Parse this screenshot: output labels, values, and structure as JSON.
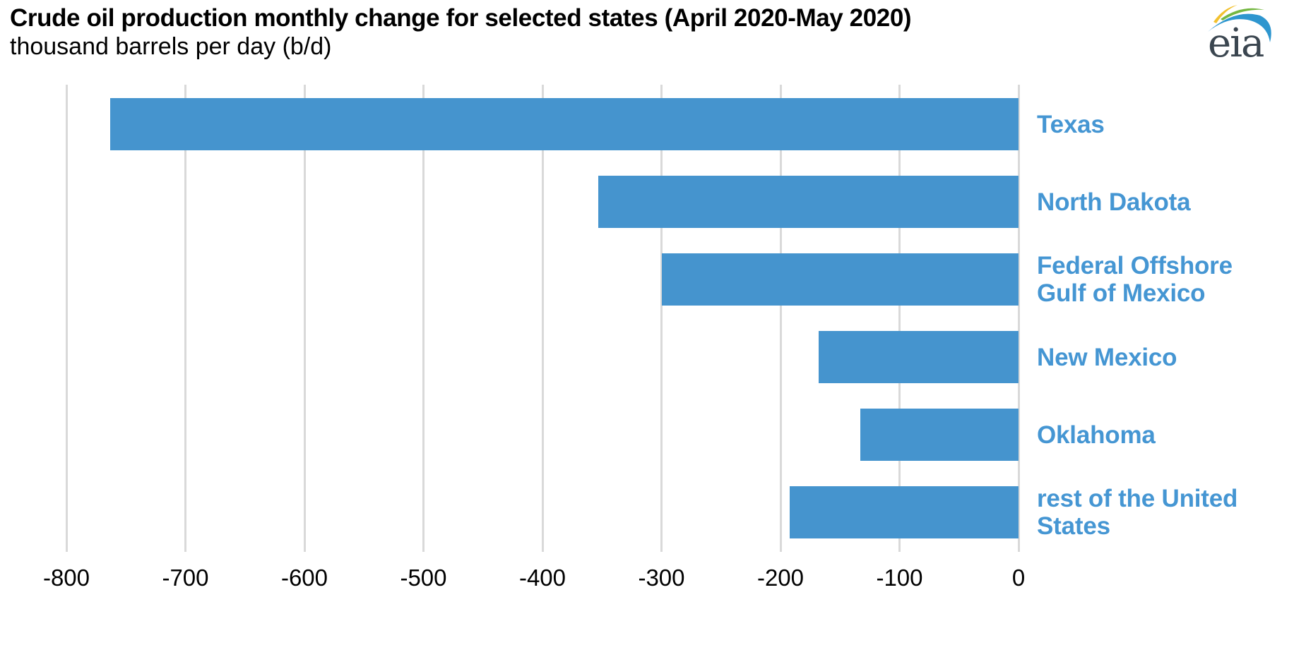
{
  "header": {
    "title": "Crude oil production monthly change for selected states (April 2020-May 2020)",
    "subtitle": "thousand barrels per day (b/d)",
    "logo_text": "eia"
  },
  "colors": {
    "bar": "#4594ce",
    "category_label": "#4596d3",
    "grid": "#d9d9d9",
    "axis_text": "#000000",
    "logo_text": "#3b4650",
    "logo_yellow": "#f2c12e",
    "logo_green": "#74b741",
    "logo_blue": "#2e96cf"
  },
  "chart_data": {
    "type": "bar",
    "orientation": "horizontal",
    "title": "Crude oil production monthly change for selected states (April 2020-May 2020)",
    "units_label": "thousand barrels per day (b/d)",
    "categories": [
      "Texas",
      "North Dakota",
      "Federal Offshore Gulf of Mexico",
      "New Mexico",
      "Oklahoma",
      "rest of the United States"
    ],
    "label_lines": [
      [
        "Texas"
      ],
      [
        "North Dakota"
      ],
      [
        "Federal Offshore",
        "Gulf of Mexico"
      ],
      [
        "New Mexico"
      ],
      [
        "Oklahoma"
      ],
      [
        "rest of the United",
        "States"
      ]
    ],
    "values": [
      -763,
      -353,
      -300,
      -168,
      -133,
      -192
    ],
    "xlim": [
      -800,
      0
    ],
    "xticks": [
      -800,
      -700,
      -600,
      -500,
      -400,
      -300,
      -200,
      -100,
      0
    ],
    "grid": true,
    "legend": false,
    "bar_color": "#4594ce"
  }
}
